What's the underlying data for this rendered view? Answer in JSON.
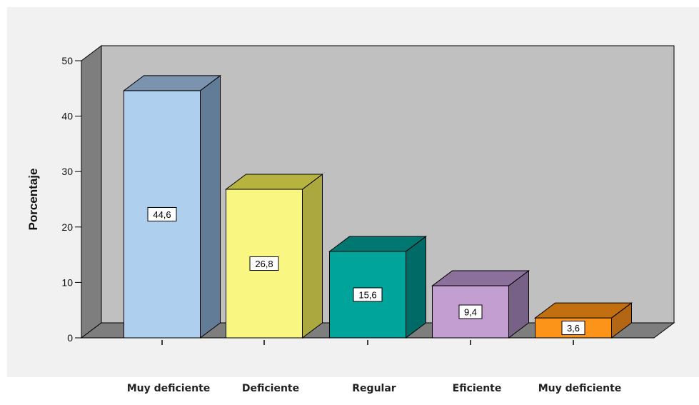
{
  "chart_data": {
    "type": "bar",
    "categories": [
      "Muy deficiente",
      "Deficiente",
      "Regular",
      "Eficiente",
      "Muy deficiente"
    ],
    "values": [
      44.6,
      26.8,
      15.6,
      9.4,
      3.6
    ],
    "data_labels": [
      "44,6",
      "26,8",
      "15,6",
      "9,4",
      "3,6"
    ],
    "ylabel": "Porcentaje",
    "xlabel": "",
    "title": "",
    "ylim": [
      0,
      50
    ],
    "yticks": [
      0,
      10,
      20,
      30,
      40,
      50
    ],
    "grid": false,
    "style": "3d",
    "colors": [
      "#aed0ee",
      "#f9f681",
      "#00a49a",
      "#c39fd1",
      "#fb9419"
    ],
    "side_colors": [
      "#627b97",
      "#aaa83f",
      "#006a66",
      "#786186",
      "#b36714"
    ],
    "top_colors": [
      "#7b93ae",
      "#b6b43f",
      "#007771",
      "#8a709b",
      "#c26f10"
    ],
    "background": "#c0c0c0",
    "floor_color": "#7e7e7e"
  }
}
